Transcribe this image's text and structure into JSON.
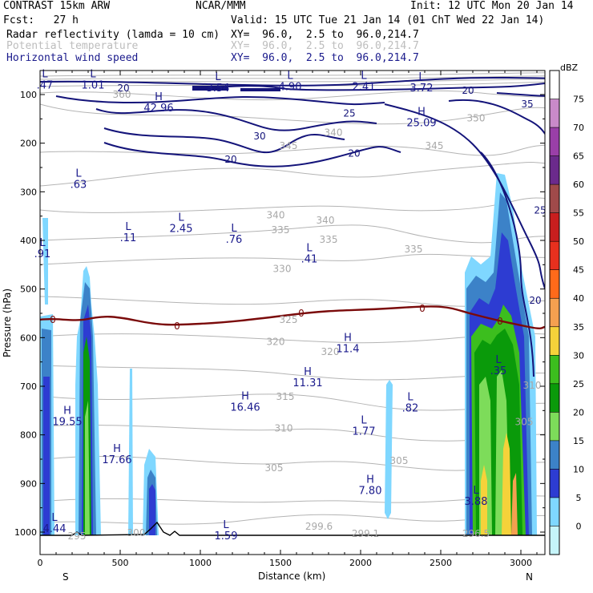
{
  "header": {
    "line1_left": "CONTRAST 15km ARW",
    "line1_center": "NCAR/MMM",
    "line1_right": "Init: 12 UTC Mon 20 Jan 14",
    "line2_left": "Fcst:   27 h",
    "line2_right": "Valid: 15 UTC Tue 21 Jan 14 (01 ChT Wed 22 Jan 14)",
    "fields": [
      {
        "label": "Radar reflectivity (lamda = 10 cm)",
        "xy": "XY=  96.0,  2.5 to  96.0,214.7",
        "color": "#000000"
      },
      {
        "label": "Potential temperature",
        "xy": "XY=  96.0,  2.5 to  96.0,214.7",
        "color": "#bdbdbd"
      },
      {
        "label": "Horizontal wind speed",
        "xy": "XY=  96.0,  2.5 to  96.0,214.7",
        "color": "#1a1a8c"
      }
    ]
  },
  "chart_data": {
    "type": "cross-section",
    "xlabel": "Distance (km)",
    "ylabel": "Pressure (hPa)",
    "xlim": [
      0,
      3150
    ],
    "ylim": [
      1040,
      75
    ],
    "xticks": [
      "0",
      "500",
      "1000",
      "1500",
      "2000",
      "2500",
      "3000"
    ],
    "yticks": [
      "100",
      "200",
      "300",
      "400",
      "500",
      "600",
      "700",
      "800",
      "900",
      "1000"
    ],
    "endpoint_labels": {
      "left": "S",
      "right": "N"
    },
    "colorbar": {
      "unit": "dBZ",
      "levels": [
        "75",
        "70",
        "65",
        "60",
        "55",
        "50",
        "45",
        "40",
        "35",
        "30",
        "25",
        "20",
        "15",
        "10",
        "5",
        "0"
      ],
      "colors": [
        "#c98ac9",
        "#9a3fa8",
        "#6b2a8c",
        "#a04a4a",
        "#c81e1e",
        "#e8301e",
        "#ff6a1a",
        "#f5a050",
        "#f5d23a",
        "#3cbe1e",
        "#0a9a0a",
        "#7ddc5a",
        "#3c82c8",
        "#2d3cd2",
        "#7fd7ff",
        "#c6f5fa",
        "#ffffff"
      ]
    },
    "theta_labels": [
      {
        "v": "360",
        "x": 510,
        "p": 107
      },
      {
        "v": "340",
        "x": 1830,
        "p": 185
      },
      {
        "v": "350",
        "x": 2720,
        "p": 155
      },
      {
        "v": "345",
        "x": 1550,
        "p": 212
      },
      {
        "v": "345",
        "x": 2460,
        "p": 212
      },
      {
        "v": "340",
        "x": 1470,
        "p": 355
      },
      {
        "v": "340",
        "x": 1780,
        "p": 365
      },
      {
        "v": "335",
        "x": 1500,
        "p": 385
      },
      {
        "v": "335",
        "x": 1800,
        "p": 405
      },
      {
        "v": "335",
        "x": 2330,
        "p": 425
      },
      {
        "v": "330",
        "x": 1510,
        "p": 465
      },
      {
        "v": "325",
        "x": 1550,
        "p": 570
      },
      {
        "v": "320",
        "x": 1470,
        "p": 615
      },
      {
        "v": "320",
        "x": 1810,
        "p": 636
      },
      {
        "v": "315",
        "x": 1530,
        "p": 728
      },
      {
        "v": "310",
        "x": 1520,
        "p": 793
      },
      {
        "v": "305",
        "x": 1460,
        "p": 875
      },
      {
        "v": "305",
        "x": 2240,
        "p": 860
      },
      {
        "v": "300",
        "x": 600,
        "p": 1008
      },
      {
        "v": "295",
        "x": 230,
        "p": 1015
      },
      {
        "v": "299.6",
        "x": 1740,
        "p": 995
      },
      {
        "v": "299.1",
        "x": 2030,
        "p": 1010
      },
      {
        "v": "296.5",
        "x": 2720,
        "p": 1010
      },
      {
        "v": "310",
        "x": 3070,
        "p": 705
      },
      {
        "v": "305",
        "x": 3020,
        "p": 780
      }
    ],
    "wind_labels": [
      {
        "v": "20",
        "x": 520,
        "p": 93
      },
      {
        "v": "20",
        "x": 2670,
        "p": 98
      },
      {
        "v": "25",
        "x": 1930,
        "p": 145
      },
      {
        "v": "30",
        "x": 1370,
        "p": 192
      },
      {
        "v": "20",
        "x": 1190,
        "p": 240
      },
      {
        "v": "20",
        "x": 1960,
        "p": 228
      },
      {
        "v": "35",
        "x": 3040,
        "p": 126
      },
      {
        "v": "25",
        "x": 3120,
        "p": 345
      },
      {
        "v": "20",
        "x": 3090,
        "p": 530
      }
    ],
    "extrema": [
      {
        "type": "L",
        "v": ".47",
        "x": 30,
        "p": 88
      },
      {
        "type": "L",
        "v": "1.01",
        "x": 330,
        "p": 88
      },
      {
        "type": "L",
        "v": "3.54",
        "x": 1110,
        "p": 93
      },
      {
        "type": "L",
        "v": "4.90",
        "x": 1560,
        "p": 91
      },
      {
        "type": "L",
        "v": "2.41",
        "x": 2020,
        "p": 91
      },
      {
        "type": "L",
        "v": "3.72",
        "x": 2380,
        "p": 93
      },
      {
        "type": "H",
        "v": "42.96",
        "x": 740,
        "p": 135
      },
      {
        "type": "H",
        "v": "25.09",
        "x": 2380,
        "p": 165
      },
      {
        "type": "L",
        "v": ".63",
        "x": 240,
        "p": 292
      },
      {
        "type": "L",
        "v": "2.45",
        "x": 880,
        "p": 383
      },
      {
        "type": "L",
        "v": ".11",
        "x": 550,
        "p": 402
      },
      {
        "type": "L",
        "v": ".76",
        "x": 1210,
        "p": 405
      },
      {
        "type": "L",
        "v": ".91",
        "x": 15,
        "p": 435
      },
      {
        "type": "L",
        "v": ".41",
        "x": 1680,
        "p": 445
      },
      {
        "type": "H",
        "v": "11.4",
        "x": 1920,
        "p": 630
      },
      {
        "type": "L",
        "v": ".35",
        "x": 2860,
        "p": 675
      },
      {
        "type": "H",
        "v": "11.31",
        "x": 1670,
        "p": 700
      },
      {
        "type": "H",
        "v": "16.46",
        "x": 1280,
        "p": 750
      },
      {
        "type": "L",
        "v": ".82",
        "x": 2310,
        "p": 752
      },
      {
        "type": "H",
        "v": "19.55",
        "x": 170,
        "p": 780
      },
      {
        "type": "L",
        "v": "1.77",
        "x": 2020,
        "p": 800
      },
      {
        "type": "H",
        "v": "17.66",
        "x": 480,
        "p": 858
      },
      {
        "type": "H",
        "v": "7.80",
        "x": 2060,
        "p": 922
      },
      {
        "type": "L",
        "v": "3.88",
        "x": 2720,
        "p": 944
      },
      {
        "type": "L",
        "v": "4.44",
        "x": 90,
        "p": 1000
      },
      {
        "type": "L",
        "v": "1.59",
        "x": 1160,
        "p": 1015
      }
    ],
    "freezing_level_label": "0",
    "annotations": []
  }
}
